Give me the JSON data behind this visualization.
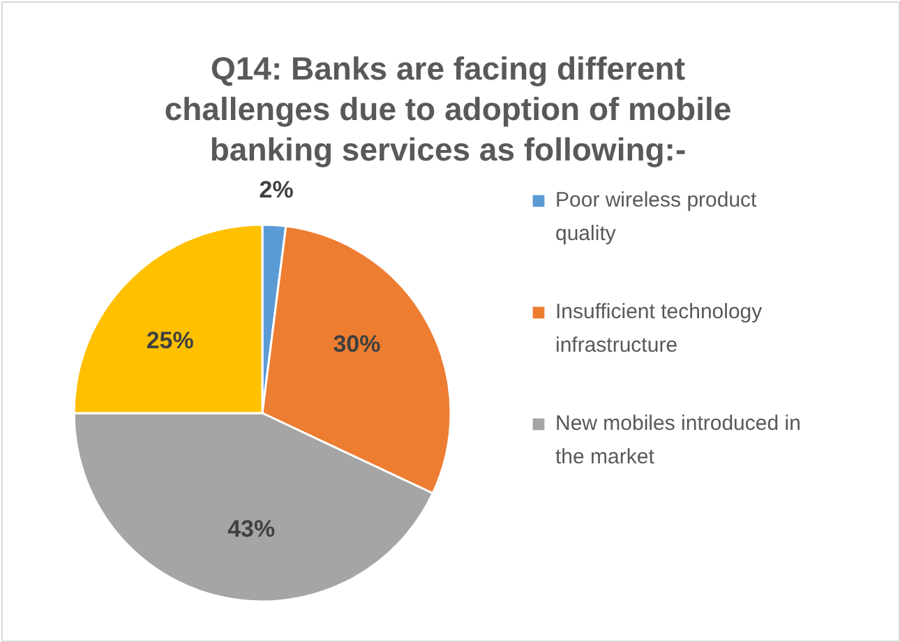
{
  "chart_data": {
    "type": "pie",
    "title": "Q14: Banks are facing different challenges due to adoption of mobile banking services as following:-",
    "categories": [
      "Poor wireless product quality",
      "Insufficient technology infrastructure",
      "New mobiles introduced in the market",
      null
    ],
    "values": [
      2,
      30,
      43,
      25
    ],
    "colors": [
      "#5b9bd5",
      "#ed7d31",
      "#a5a5a5",
      "#ffc000"
    ],
    "value_labels": [
      "2%",
      "30%",
      "43%",
      "25%"
    ],
    "legend": "right"
  }
}
